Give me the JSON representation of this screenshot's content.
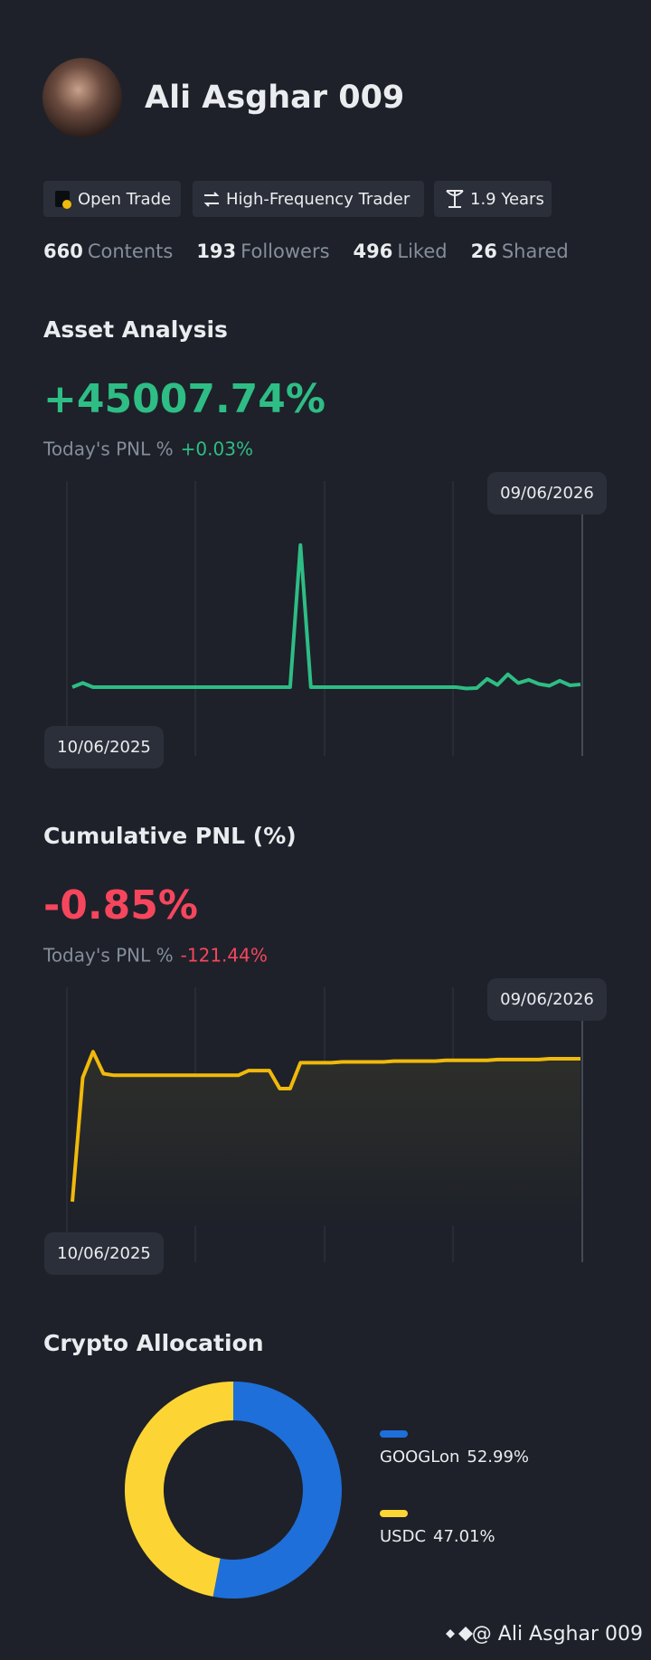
{
  "profile": {
    "name": "Ali Asghar 009",
    "tags": [
      "Open Trade",
      "High-Frequency Trader",
      "1.9 Years"
    ],
    "stats": [
      {
        "value": 660,
        "label": "Contents"
      },
      {
        "value": 193,
        "label": "Followers"
      },
      {
        "value": 496,
        "label": "Liked"
      },
      {
        "value": 26,
        "label": "Shared"
      }
    ]
  },
  "chart_data": [
    {
      "type": "line",
      "title": "Asset Analysis",
      "headline": "+45007.74%",
      "today_label": "Today's PNL %",
      "today_value": "+0.03%",
      "start_date": "10/06/2025",
      "end_date": "09/06/2026",
      "color": "#2ebd85",
      "area": false,
      "ylim": [
        -15000,
        45000
      ],
      "values": [
        0,
        900,
        0,
        0,
        0,
        0,
        0,
        0,
        0,
        0,
        0,
        0,
        0,
        0,
        0,
        0,
        0,
        0,
        0,
        0,
        0,
        0,
        31000,
        0,
        0,
        0,
        0,
        0,
        0,
        0,
        0,
        0,
        0,
        0,
        0,
        0,
        0,
        0,
        -300,
        -200,
        1800,
        500,
        2800,
        900,
        1600,
        700,
        300,
        1400,
        400,
        600
      ]
    },
    {
      "type": "line",
      "title": "Cumulative PNL (%)",
      "headline": "-0.85%",
      "today_label": "Today's PNL %",
      "today_value": "-121.44%",
      "start_date": "10/06/2025",
      "end_date": "09/06/2026",
      "color": "#f0b90b",
      "area": true,
      "ylim": [
        -30,
        5
      ],
      "values": [
        -22.3,
        -6.5,
        -3.2,
        -6.0,
        -6.2,
        -6.2,
        -6.2,
        -6.2,
        -6.2,
        -6.2,
        -6.2,
        -6.2,
        -6.2,
        -6.2,
        -6.2,
        -6.2,
        -6.2,
        -5.6,
        -5.6,
        -5.6,
        -7.9,
        -7.9,
        -4.6,
        -4.6,
        -4.6,
        -4.6,
        -4.5,
        -4.5,
        -4.5,
        -4.5,
        -4.5,
        -4.4,
        -4.4,
        -4.4,
        -4.4,
        -4.4,
        -4.3,
        -4.3,
        -4.3,
        -4.3,
        -4.3,
        -4.2,
        -4.2,
        -4.2,
        -4.2,
        -4.2,
        -4.1,
        -4.1,
        -4.1,
        -4.1
      ]
    },
    {
      "type": "donut",
      "title": "Crypto Allocation",
      "categories": [
        "GOOGLon",
        "USDC"
      ],
      "values": [
        52.99,
        47.01
      ],
      "value_labels": [
        "52.99%",
        "47.01%"
      ],
      "colors": [
        "#1e6fd9",
        "#fcd535"
      ]
    }
  ],
  "footer": "@ Ali Asghar 009"
}
